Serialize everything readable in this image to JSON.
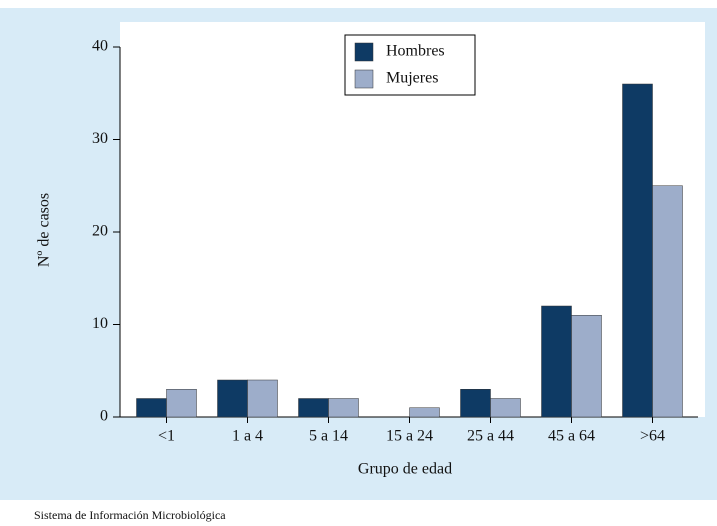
{
  "chart_data": {
    "type": "bar",
    "categories": [
      "<1",
      "1 a 4",
      "5 a 14",
      "15 a 24",
      "25 a 44",
      "45 a 64",
      ">64"
    ],
    "series": [
      {
        "name": "Hombres",
        "color": "#0e3a64",
        "values": [
          2,
          4,
          2,
          0,
          3,
          12,
          36
        ]
      },
      {
        "name": "Mujeres",
        "color": "#9dadca",
        "values": [
          3,
          4,
          2,
          1,
          2,
          11,
          25
        ]
      }
    ],
    "ylim": [
      0,
      40
    ],
    "yticks": [
      0,
      10,
      20,
      30,
      40
    ],
    "y_label": "Nº de casos",
    "x_label": "Grupo de edad",
    "source": "Sistema de Información Microbiológica"
  }
}
